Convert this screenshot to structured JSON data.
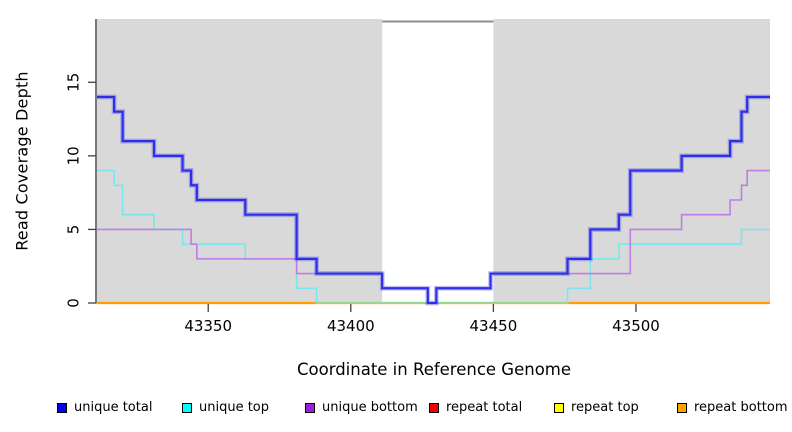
{
  "labels": {
    "xlabel": "Coordinate in Reference Genome",
    "ylabel": "Read Coverage Depth"
  },
  "legend": [
    {
      "label": "unique total",
      "color": "#0404e8"
    },
    {
      "label": "unique top",
      "color": "#00ffff"
    },
    {
      "label": "unique bottom",
      "color": "#9c1fd9"
    },
    {
      "label": "repeat total",
      "color": "#ee0000"
    },
    {
      "label": "repeat top",
      "color": "#ffff00"
    },
    {
      "label": "repeat bottom",
      "color": "#ffa500"
    }
  ],
  "chart_data": {
    "type": "line",
    "subtype": "step",
    "title": "",
    "xlabel": "Coordinate in Reference Genome",
    "ylabel": "Read Coverage Depth",
    "x_ticks": [
      43350,
      43400,
      43450,
      43500
    ],
    "y_ticks": [
      0,
      5,
      10,
      15
    ],
    "x_range": [
      43311,
      43547
    ],
    "y_range": [
      0,
      19.3
    ],
    "grid": false,
    "legend_position": "bottom",
    "panel_bg": "#d9d9d9",
    "uncovered_band": {
      "from": 43411,
      "to": 43450,
      "fill": "#ffffff",
      "top_border": "#8d8d8d"
    },
    "series": [
      {
        "name": "unique total",
        "line_color": "#2e2ee8",
        "width": 2.2,
        "halo": true,
        "steps": [
          [
            43311,
            14
          ],
          [
            43317,
            13
          ],
          [
            43320,
            11
          ],
          [
            43331,
            10
          ],
          [
            43341,
            9
          ],
          [
            43344,
            8
          ],
          [
            43346,
            7
          ],
          [
            43363,
            6
          ],
          [
            43381,
            3
          ],
          [
            43388,
            2
          ],
          [
            43411,
            1
          ],
          [
            43427,
            0
          ],
          [
            43430,
            1
          ],
          [
            43449,
            2
          ],
          [
            43476,
            3
          ],
          [
            43484,
            5
          ],
          [
            43494,
            6
          ],
          [
            43498,
            9
          ],
          [
            43516,
            10
          ],
          [
            43533,
            11
          ],
          [
            43537,
            13
          ],
          [
            43539,
            14
          ],
          [
            43547,
            14
          ]
        ]
      },
      {
        "name": "unique top",
        "line_color": "#7ce6ec",
        "width": 1.6,
        "halo": false,
        "steps": [
          [
            43311,
            9
          ],
          [
            43317,
            8
          ],
          [
            43320,
            6
          ],
          [
            43331,
            5
          ],
          [
            43341,
            4
          ],
          [
            43363,
            3
          ],
          [
            43381,
            1
          ],
          [
            43388,
            0
          ],
          [
            43476,
            1
          ],
          [
            43484,
            3
          ],
          [
            43494,
            4
          ],
          [
            43537,
            5
          ],
          [
            43547,
            5
          ]
        ]
      },
      {
        "name": "unique bottom",
        "line_color": "#bd7fe3",
        "width": 1.6,
        "halo": false,
        "steps": [
          [
            43311,
            5
          ],
          [
            43344,
            4
          ],
          [
            43346,
            3
          ],
          [
            43381,
            2
          ],
          [
            43411,
            1
          ],
          [
            43427,
            0
          ],
          [
            43430,
            1
          ],
          [
            43449,
            2
          ],
          [
            43498,
            5
          ],
          [
            43516,
            6
          ],
          [
            43533,
            7
          ],
          [
            43537,
            8
          ],
          [
            43539,
            9
          ],
          [
            43547,
            9
          ]
        ]
      },
      {
        "name": "repeat total",
        "line_color": "#ee0000",
        "width": 1.4,
        "halo": false,
        "steps": [
          [
            43311,
            0
          ],
          [
            43547,
            0
          ]
        ]
      },
      {
        "name": "repeat top",
        "line_color": "#ffff00",
        "width": 1.4,
        "halo": false,
        "steps": [
          [
            43311,
            0
          ],
          [
            43547,
            0
          ]
        ]
      },
      {
        "name": "repeat bottom",
        "line_color": "#ff9f00",
        "width": 2.2,
        "halo": false,
        "steps": [
          [
            43311,
            0
          ],
          [
            43547,
            0
          ]
        ]
      }
    ],
    "overlap_line": {
      "name": "unique-top-repeat-top-overlap",
      "color": "#96d896",
      "value": 0,
      "from": 43388,
      "to": 43476,
      "width": 1.8
    },
    "draw_order": [
      "repeat total",
      "repeat top",
      "repeat bottom",
      "unique top",
      "overlap",
      "unique bottom",
      "unique total"
    ]
  }
}
